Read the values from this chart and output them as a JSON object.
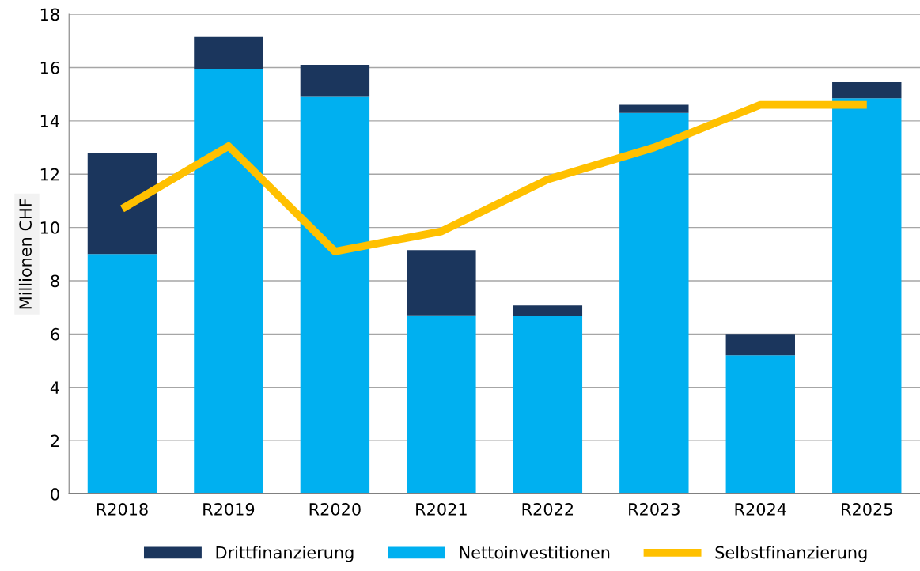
{
  "chart_data": {
    "type": "bar",
    "stacked": true,
    "ylabel": "Millionen CHF",
    "categories": [
      "R2018",
      "R2019",
      "R2020",
      "R2021",
      "R2022",
      "R2023",
      "R2024",
      "R2025"
    ],
    "series": [
      {
        "name": "Nettoinvestitionen",
        "color": "#00b0f0",
        "values": [
          9.0,
          15.95,
          14.9,
          6.7,
          6.67,
          14.3,
          5.2,
          14.85
        ]
      },
      {
        "name": "Drittfinanzierung",
        "color": "#1b365d",
        "values": [
          3.8,
          1.2,
          1.2,
          2.45,
          0.4,
          0.3,
          0.8,
          0.6
        ]
      },
      {
        "name": "Selbstfinanzierung",
        "type": "line",
        "color": "#ffc000",
        "values": [
          10.7,
          13.05,
          9.1,
          9.85,
          11.8,
          13.0,
          14.6,
          14.6
        ]
      }
    ],
    "ylim": [
      0,
      18
    ],
    "yticks": [
      0,
      2,
      4,
      6,
      8,
      10,
      12,
      14,
      16,
      18
    ],
    "grid": "y",
    "legend": "bottom",
    "marker": "none",
    "line_style": "solid"
  }
}
